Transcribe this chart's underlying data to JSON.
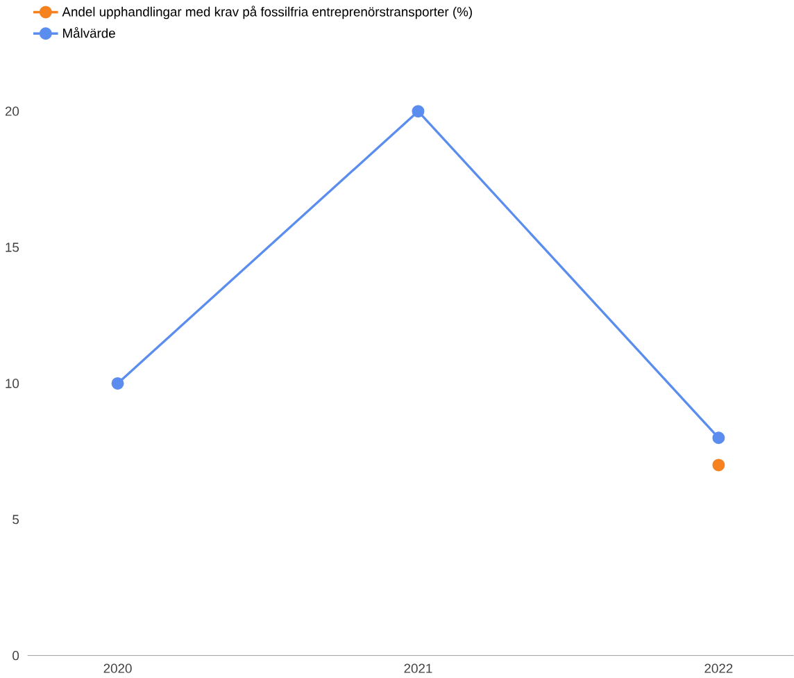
{
  "chart_data": {
    "type": "line",
    "categories": [
      "2020",
      "2021",
      "2022"
    ],
    "series": [
      {
        "name": "Andel upphandlingar med krav på fossilfria entreprenörstransporter (%)",
        "color": "#f5821f",
        "values": [
          null,
          null,
          7
        ]
      },
      {
        "name": "Målvärde",
        "color": "#5b8def",
        "values": [
          10,
          20,
          8
        ]
      }
    ],
    "ylim": [
      0,
      20
    ],
    "yticks": [
      0,
      5,
      10,
      15,
      20
    ],
    "legend": "top left",
    "marker": "circle",
    "grid": false
  }
}
